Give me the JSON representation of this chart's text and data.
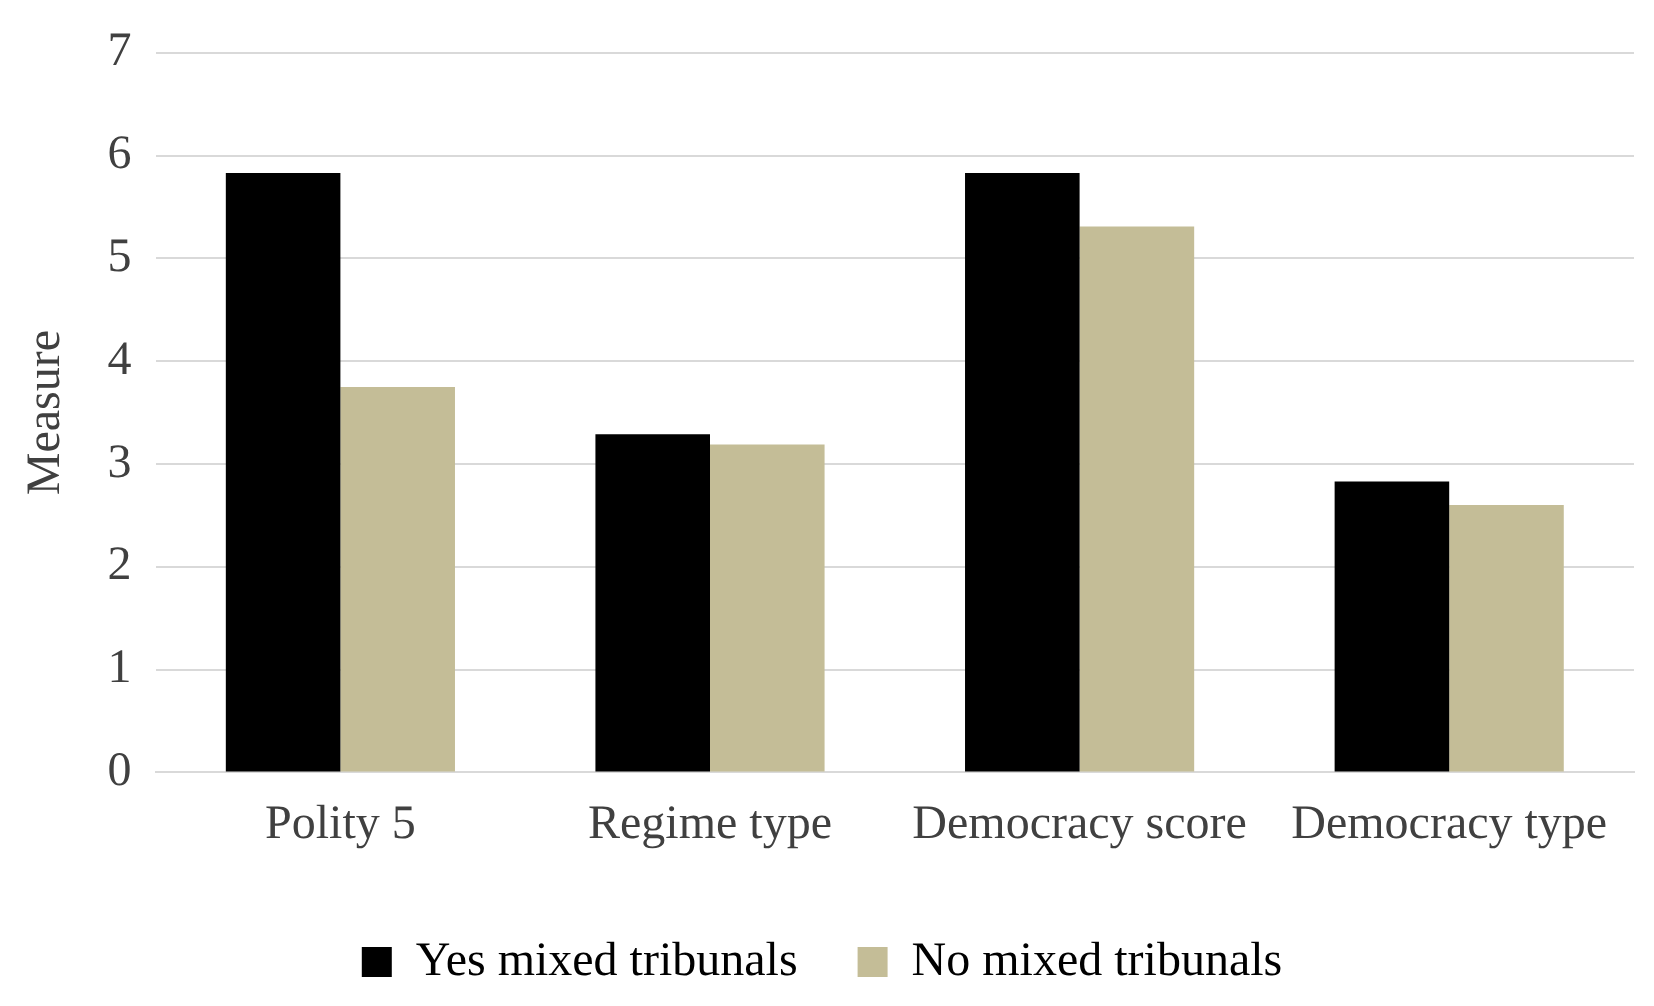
{
  "chart_data": {
    "type": "bar",
    "ylabel": "Measure",
    "categories": [
      "Polity 5",
      "Regime type",
      "Democracy score",
      "Democracy type"
    ],
    "series": [
      {
        "name": "Yes mixed tribunals",
        "color": "#000000",
        "values": [
          5.83,
          3.29,
          5.83,
          2.83
        ]
      },
      {
        "name": "No mixed tribunals",
        "color": "#c4bd97",
        "values": [
          3.75,
          3.19,
          5.31,
          2.6
        ]
      }
    ],
    "ylim": [
      0,
      7
    ],
    "yticks": [
      0,
      1,
      2,
      3,
      4,
      5,
      6,
      7
    ],
    "grid": "y",
    "legend": "bottom"
  }
}
